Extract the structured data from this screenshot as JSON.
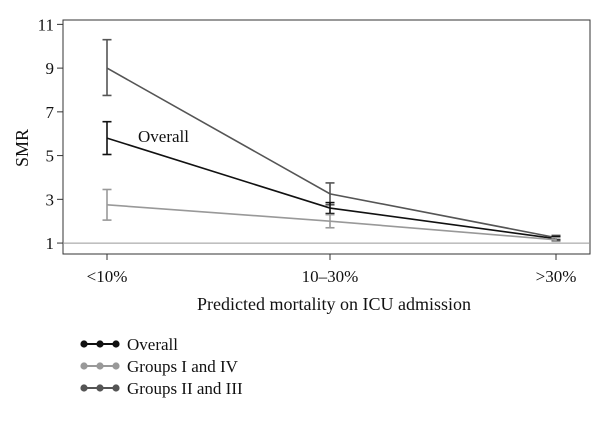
{
  "chart_data": {
    "type": "line",
    "title": "",
    "xlabel": "Predicted mortality on ICU admission",
    "ylabel": "SMR",
    "categories": [
      "<10%",
      "10–30%",
      ">30%"
    ],
    "ylim": [
      0.5,
      11.2
    ],
    "yticks": [
      1,
      3,
      5,
      7,
      9,
      11
    ],
    "reference_line": 1,
    "grid": false,
    "legend_position": "bottom-left",
    "annotation": {
      "text": "Overall",
      "series": "Overall",
      "category": "<10%"
    },
    "colors": {
      "Groups II and III": "#555555",
      "Overall": "#111111",
      "Groups I and IV": "#999999",
      "reference": "#999999",
      "axis": "#333333"
    },
    "series": [
      {
        "name": "Groups II and III",
        "values": [
          9.0,
          3.25,
          1.25
        ],
        "lower": [
          7.75,
          2.75,
          1.15
        ],
        "upper": [
          10.3,
          3.75,
          1.35
        ]
      },
      {
        "name": "Overall",
        "values": [
          5.8,
          2.6,
          1.2
        ],
        "lower": [
          5.05,
          2.35,
          1.12
        ],
        "upper": [
          6.55,
          2.85,
          1.3
        ]
      },
      {
        "name": "Groups I and IV",
        "values": [
          2.75,
          2.0,
          1.15
        ],
        "lower": [
          2.05,
          1.7,
          1.08
        ],
        "upper": [
          3.45,
          2.3,
          1.24
        ]
      }
    ],
    "legend": [
      {
        "label": "Overall",
        "series": "Overall"
      },
      {
        "label": "Groups I and IV",
        "series": "Groups I and IV"
      },
      {
        "label": "Groups II and III",
        "series": "Groups II and III"
      }
    ]
  }
}
